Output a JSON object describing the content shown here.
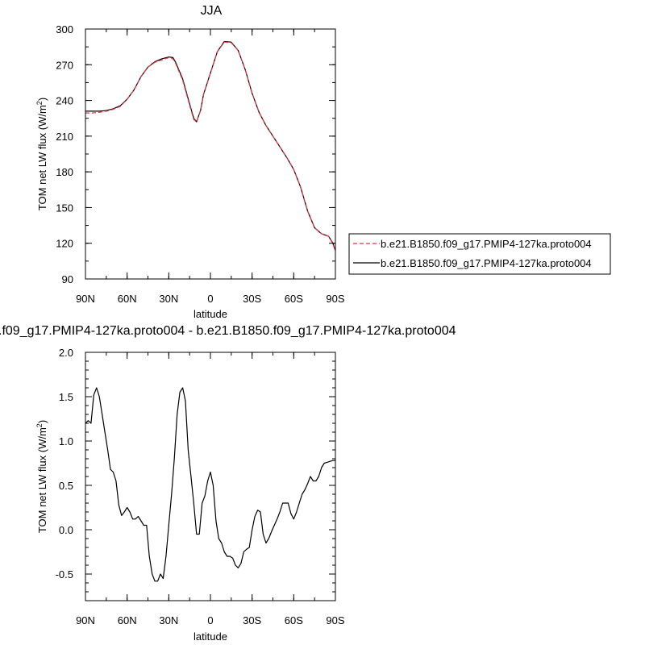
{
  "charts": [
    {
      "id": "top",
      "title": "JJA",
      "xlabel": "latitude",
      "ylabel_prefix": "TOM net LW flux (W/m",
      "ylabel_sup": "2",
      "ylabel_suffix": ")",
      "xticks": [
        "90N",
        "60N",
        "30N",
        "0",
        "30S",
        "60S",
        "90S"
      ],
      "yticks": [
        "90",
        "120",
        "150",
        "180",
        "210",
        "240",
        "270",
        "300"
      ]
    },
    {
      "id": "bottom",
      "title": ".f09_g17.PMIP4-127ka.proto004 - b.e21.B1850.f09_g17.PMIP4-127ka.proto004",
      "xlabel": "latitude",
      "ylabel_prefix": "TOM net LW flux (W/m",
      "ylabel_sup": "2",
      "ylabel_suffix": ")",
      "xticks": [
        "90N",
        "60N",
        "30N",
        "0",
        "30S",
        "60S",
        "90S"
      ],
      "yticks": [
        "-0.5",
        "0.0",
        "0.5",
        "1.0",
        "1.5",
        "2.0"
      ]
    }
  ],
  "legend": [
    {
      "label": "b.e21.B1850.f09_g17.PMIP4-127ka.proto004",
      "color": "#e8323c",
      "style": "dashed"
    },
    {
      "label": "b.e21.B1850.f09_g17.PMIP4-127ka.proto004",
      "color": "#000000",
      "style": "solid"
    }
  ],
  "chart_data": [
    {
      "type": "line",
      "title": "JJA",
      "xlabel": "latitude",
      "ylabel": "TOM net LW flux (W/m2)",
      "xlim": [
        90,
        -90
      ],
      "ylim": [
        90,
        300
      ],
      "x_unit": "degrees latitude (positive = N)",
      "series": [
        {
          "name": "b.e21.B1850.f09_g17.PMIP4-127ka.proto004",
          "color": "#e8323c",
          "style": "dashed",
          "x": [
            90,
            85,
            80,
            75,
            70,
            65,
            60,
            55,
            50,
            45,
            40,
            35,
            30,
            27,
            25,
            20,
            15,
            12,
            10,
            7,
            5,
            0,
            -5,
            -10,
            -15,
            -20,
            -25,
            -30,
            -35,
            -40,
            -45,
            -50,
            -55,
            -60,
            -65,
            -70,
            -75,
            -80,
            -85,
            -88,
            -90
          ],
          "y": [
            229.5,
            229.5,
            230,
            231,
            232.5,
            235,
            241,
            249,
            260,
            268,
            272,
            274,
            276,
            275,
            271,
            257,
            236,
            224,
            222,
            232,
            245,
            263,
            281,
            289,
            288.5,
            282,
            266,
            246,
            230,
            219,
            210,
            201,
            192,
            182,
            167,
            147,
            133,
            128,
            126,
            120,
            113
          ]
        },
        {
          "name": "b.e21.B1850.f09_g17.PMIP4-127ka.proto004",
          "color": "#000000",
          "style": "solid",
          "x": [
            90,
            85,
            80,
            75,
            70,
            65,
            60,
            55,
            50,
            45,
            40,
            35,
            30,
            27,
            25,
            20,
            15,
            12,
            10,
            7,
            5,
            0,
            -5,
            -10,
            -15,
            -20,
            -25,
            -30,
            -35,
            -40,
            -45,
            -50,
            -55,
            -60,
            -65,
            -70,
            -75,
            -80,
            -85,
            -88,
            -90
          ],
          "y": [
            231,
            231,
            231,
            231.5,
            233,
            235.5,
            241,
            249,
            260,
            268,
            272.5,
            275,
            276.5,
            276,
            272,
            258,
            237,
            225,
            222,
            232,
            245,
            263,
            281,
            289.5,
            289,
            282,
            266,
            246,
            230,
            219,
            210,
            201,
            192,
            182,
            167,
            147,
            133,
            128,
            126,
            120.5,
            114
          ]
        }
      ]
    },
    {
      "type": "line",
      "title": ".f09_g17.PMIP4-127ka.proto004 - b.e21.B1850.f09_g17.PMIP4-127ka.proto004",
      "xlabel": "latitude",
      "ylabel": "TOM net LW flux (W/m2)",
      "xlim": [
        90,
        -90
      ],
      "ylim": [
        -0.8,
        2.0
      ],
      "x_unit": "degrees latitude (positive = N)",
      "series": [
        {
          "color": "#000000",
          "style": "solid",
          "x": [
            90,
            88,
            86,
            84,
            82,
            80,
            78,
            76,
            74,
            72,
            70,
            68,
            66,
            64,
            62,
            60,
            58,
            56,
            54,
            52,
            50,
            48,
            46,
            44,
            42,
            40,
            38,
            36,
            34,
            32,
            30,
            28,
            26,
            24,
            22,
            20,
            18,
            16,
            14,
            12,
            10,
            8,
            6,
            4,
            2,
            0,
            -2,
            -4,
            -6,
            -8,
            -10,
            -12,
            -14,
            -16,
            -18,
            -20,
            -22,
            -24,
            -26,
            -28,
            -30,
            -32,
            -34,
            -36,
            -38,
            -40,
            -42,
            -44,
            -46,
            -48,
            -50,
            -52,
            -54,
            -56,
            -58,
            -60,
            -62,
            -64,
            -66,
            -68,
            -70,
            -72,
            -74,
            -76,
            -78,
            -80,
            -82,
            -84,
            -86,
            -88,
            -90
          ],
          "y": [
            1.2,
            1.23,
            1.2,
            1.52,
            1.6,
            1.5,
            1.3,
            1.1,
            0.9,
            0.68,
            0.65,
            0.55,
            0.28,
            0.16,
            0.2,
            0.25,
            0.2,
            0.12,
            0.12,
            0.15,
            0.1,
            0.05,
            0.05,
            -0.3,
            -0.5,
            -0.58,
            -0.58,
            -0.5,
            -0.55,
            -0.3,
            0.05,
            0.4,
            0.8,
            1.3,
            1.55,
            1.6,
            1.45,
            0.9,
            0.6,
            0.3,
            -0.05,
            -0.05,
            0.3,
            0.38,
            0.55,
            0.65,
            0.5,
            0.1,
            -0.1,
            -0.15,
            -0.25,
            -0.3,
            -0.3,
            -0.32,
            -0.4,
            -0.43,
            -0.38,
            -0.25,
            -0.22,
            -0.2,
            0.0,
            0.15,
            0.22,
            0.2,
            -0.05,
            -0.15,
            -0.1,
            -0.02,
            0.05,
            0.12,
            0.2,
            0.3,
            0.3,
            0.3,
            0.18,
            0.12,
            0.2,
            0.3,
            0.4,
            0.45,
            0.52,
            0.6,
            0.55,
            0.55,
            0.6,
            0.7,
            0.75,
            0.76,
            0.77,
            0.78,
            0.78
          ]
        }
      ]
    }
  ]
}
